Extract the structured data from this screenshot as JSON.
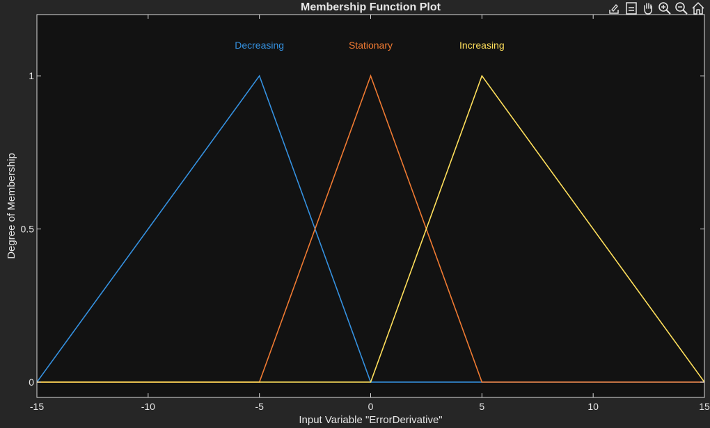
{
  "chart_data": {
    "type": "line",
    "title": "Membership Function Plot",
    "xlabel": "Input Variable \"ErrorDerivative\"",
    "ylabel": "Degree of Membership",
    "xlim": [
      -15,
      15
    ],
    "ylim": [
      -0.05,
      1.2
    ],
    "xticks": [
      -15,
      -10,
      -5,
      0,
      5,
      10,
      15
    ],
    "xtick_labels": [
      "-15",
      "-10",
      "-5",
      "0",
      "5",
      "10",
      "15"
    ],
    "yticks": [
      0,
      0.5,
      1
    ],
    "ytick_labels": [
      "0",
      "0.5",
      "1"
    ],
    "grid": false,
    "series": [
      {
        "name": "Decreasing",
        "color": "#3591e0",
        "x": [
          -15,
          -5,
          0,
          15
        ],
        "y": [
          0,
          1,
          0,
          0
        ]
      },
      {
        "name": "Stationary",
        "color": "#ef7a32",
        "x": [
          -15,
          -5,
          0,
          5,
          15
        ],
        "y": [
          0,
          0,
          1,
          0,
          0
        ]
      },
      {
        "name": "Increasing",
        "color": "#ffdf5b",
        "x": [
          -15,
          0,
          5,
          15
        ],
        "y": [
          0,
          0,
          1,
          0
        ]
      }
    ],
    "series_label_y": 1.1
  },
  "toolbar": {
    "icons": [
      "export-icon",
      "legend-icon",
      "pan-icon",
      "zoom-in-icon",
      "zoom-out-icon",
      "home-icon"
    ]
  },
  "colors": {
    "background": "#262626",
    "axes": "#121212",
    "axis_line": "#d9d9d9",
    "text": "#e6e6e6"
  }
}
